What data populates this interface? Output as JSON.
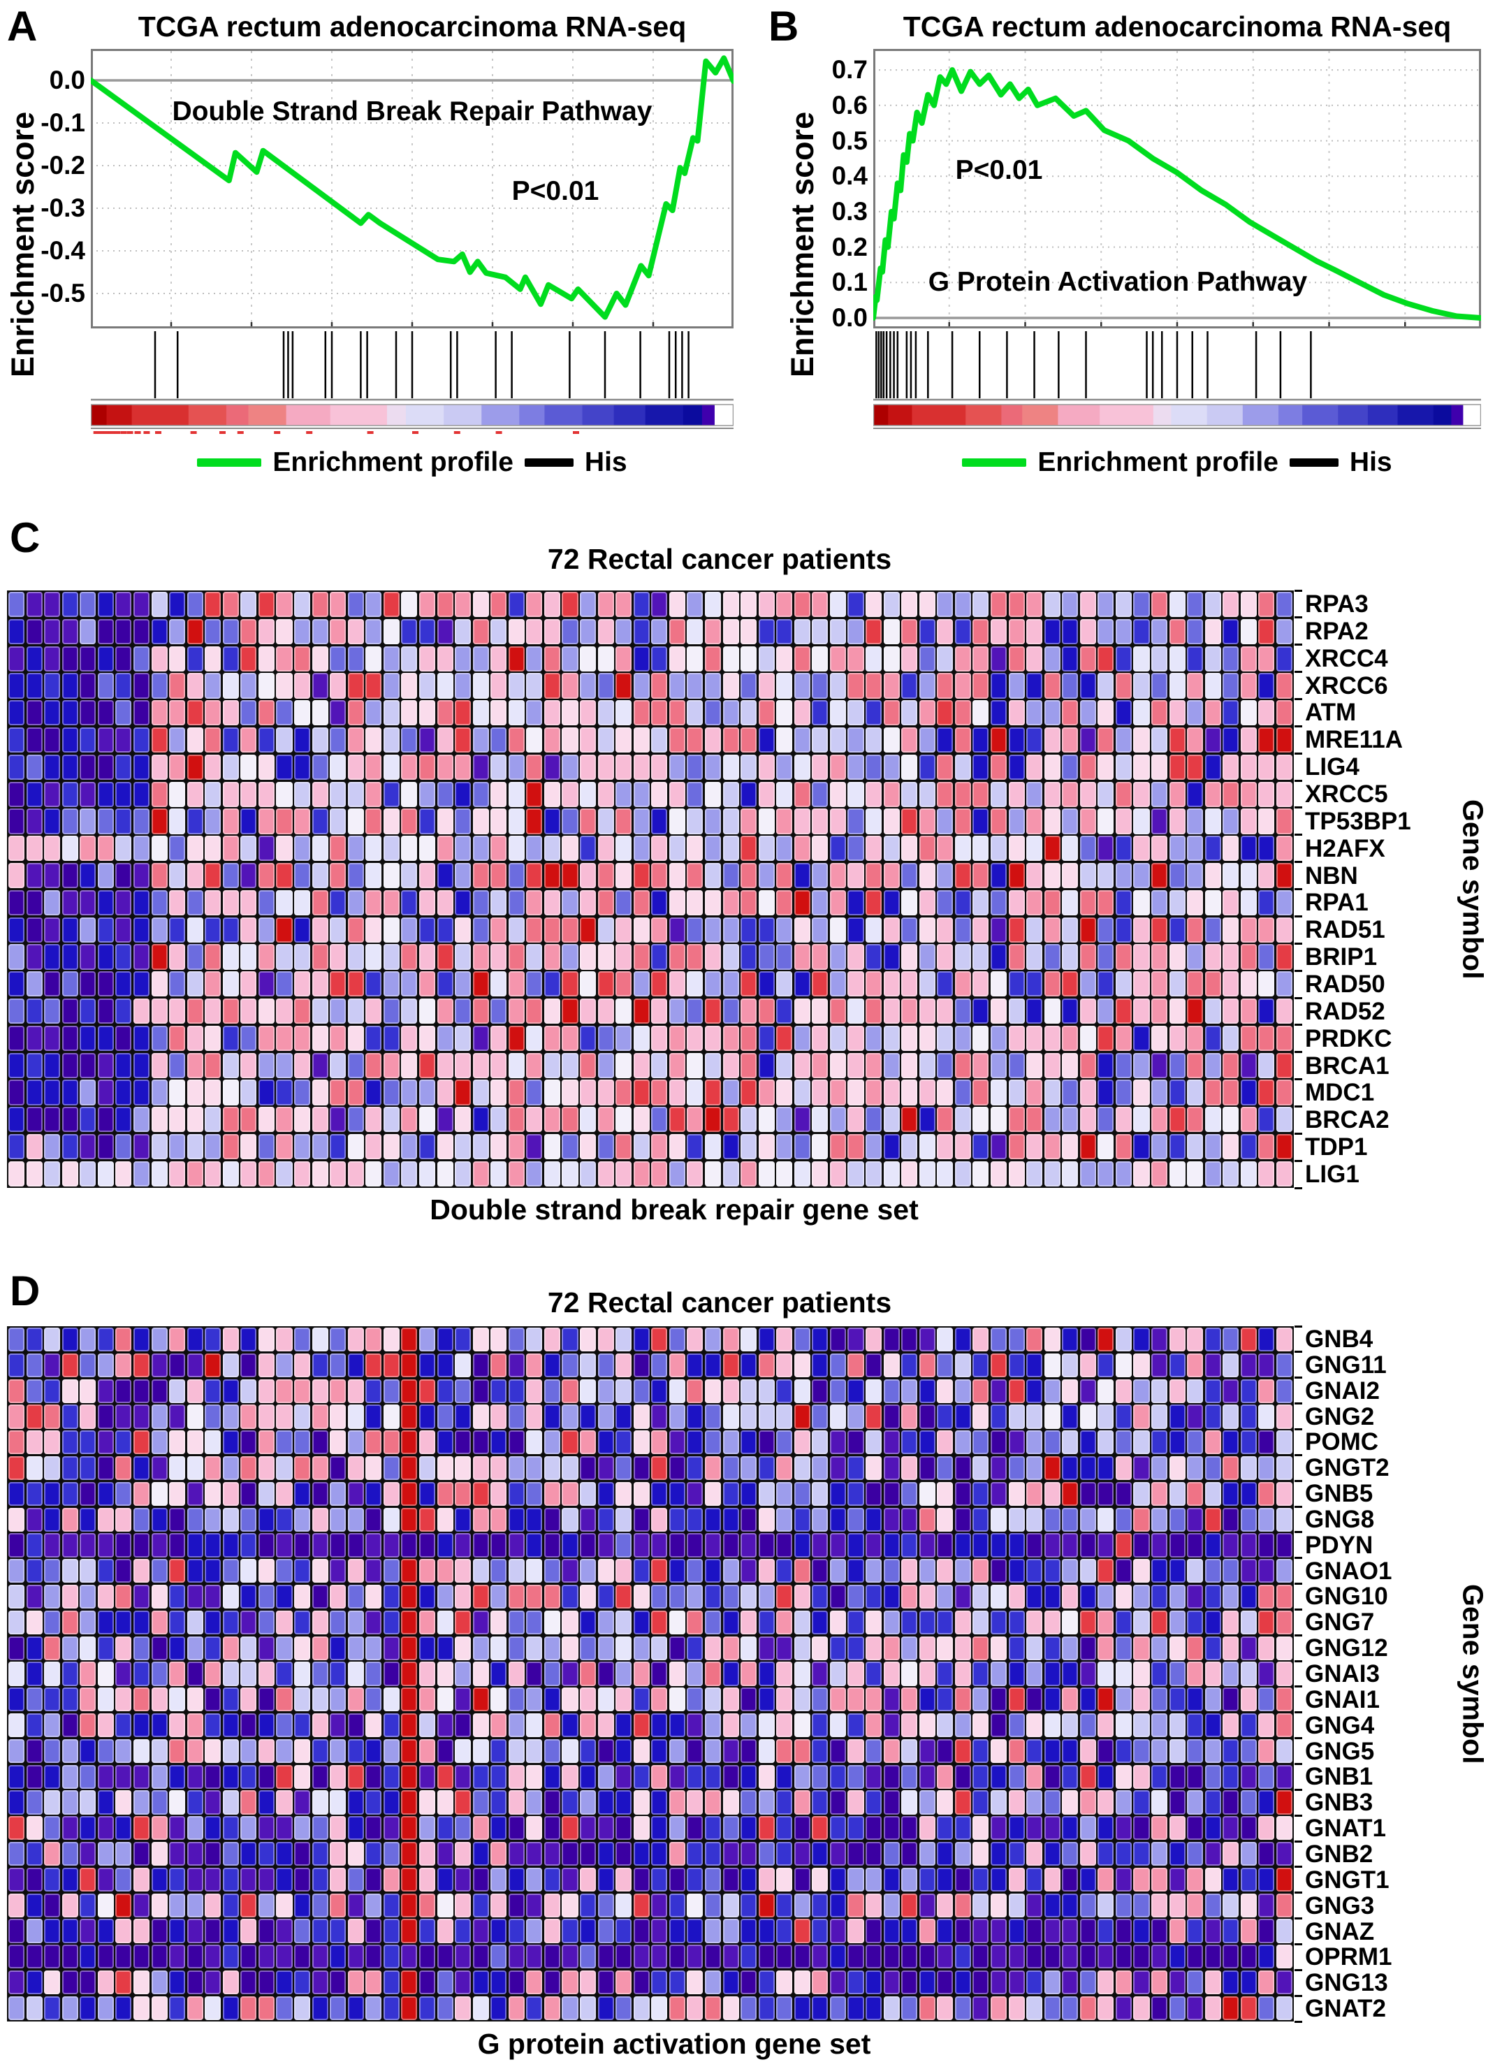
{
  "figure": {
    "panel_letters": [
      "A",
      "B",
      "C",
      "D"
    ]
  },
  "colors": {
    "P0": "#3b00a2",
    "P1": "#5214b8",
    "B0": "#1c12c4",
    "B1": "#3633d2",
    "B2": "#6c6cdf",
    "B3": "#9d9dec",
    "B4": "#cbcbf5",
    "B5": "#e6e6fb",
    "W": "#f3f0fa",
    "R5": "#fadcec",
    "R4": "#f8bcd6",
    "R3": "#f595ad",
    "R2": "#ef7386",
    "R1": "#e53c45",
    "R0": "#d11010",
    "R00": "#a80000"
  },
  "palettes": {
    "leftDark": [
      [
        "P0",
        3
      ],
      [
        "P1",
        3
      ],
      [
        "B0",
        4
      ],
      [
        "B1",
        3
      ],
      [
        "B2",
        1.2
      ],
      [
        "B3",
        0.8
      ],
      [
        "R4",
        0.25
      ]
    ],
    "leftMixed": [
      [
        "B3",
        2
      ],
      [
        "B4",
        2
      ],
      [
        "R4",
        2
      ],
      [
        "B1",
        1
      ],
      [
        "R3",
        1
      ],
      [
        "B5",
        1
      ]
    ],
    "leftLight": [
      [
        "B4",
        3
      ],
      [
        "B5",
        2
      ],
      [
        "R5",
        2
      ],
      [
        "B3",
        1
      ],
      [
        "R4",
        1
      ]
    ],
    "mixedC": [
      [
        "R4",
        3
      ],
      [
        "R3",
        2
      ],
      [
        "R2",
        2
      ],
      [
        "R5",
        2
      ],
      [
        "B3",
        2
      ],
      [
        "B4",
        2
      ],
      [
        "B2",
        1.6
      ],
      [
        "B1",
        1.4
      ],
      [
        "B5",
        1.2
      ],
      [
        "R1",
        0.8
      ],
      [
        "R0",
        0.5
      ],
      [
        "B0",
        1
      ],
      [
        "P1",
        0.4
      ],
      [
        "W",
        0.8
      ]
    ],
    "lightRow": [
      [
        "B4",
        2
      ],
      [
        "B5",
        2
      ],
      [
        "R5",
        2
      ],
      [
        "R4",
        2
      ],
      [
        "B3",
        1
      ],
      [
        "R3",
        1
      ],
      [
        "W",
        1
      ]
    ],
    "mixedD": [
      [
        "B0",
        2.6
      ],
      [
        "B1",
        2.6
      ],
      [
        "B2",
        2
      ],
      [
        "B3",
        2
      ],
      [
        "B4",
        1.8
      ],
      [
        "P0",
        1.4
      ],
      [
        "P1",
        1.4
      ],
      [
        "R4",
        2
      ],
      [
        "R3",
        1.5
      ],
      [
        "R5",
        1.5
      ],
      [
        "R2",
        1
      ],
      [
        "R1",
        0.6
      ],
      [
        "R0",
        0.3
      ],
      [
        "B5",
        0.9
      ],
      [
        "W",
        0.4
      ]
    ],
    "darkRow": [
      [
        "P0",
        6
      ],
      [
        "P1",
        4
      ],
      [
        "B0",
        1.5
      ],
      [
        "B1",
        0.8
      ],
      [
        "R1",
        0.15
      ],
      [
        "B2",
        0.2
      ]
    ],
    "semiDark": [
      [
        "P0",
        2.5
      ],
      [
        "P1",
        2
      ],
      [
        "B0",
        2.5
      ],
      [
        "B1",
        2
      ],
      [
        "B2",
        1
      ],
      [
        "B3",
        0.8
      ],
      [
        "R4",
        1
      ],
      [
        "R3",
        0.8
      ],
      [
        "R5",
        0.6
      ],
      [
        "R1",
        0.3
      ]
    ]
  },
  "chart_data": [
    {
      "id": "A",
      "type": "line",
      "title": "TCGA rectum adenocarcinoma RNA-seq",
      "ylabel": "Enrichment  score",
      "pathway_label": "Double Strand Break Repair Pathway",
      "pvalue": "P<0.01",
      "legend": [
        "Enrichment profile",
        "His"
      ],
      "yticks": [
        "0.0",
        "-0.1",
        "-0.2",
        "-0.3",
        "-0.4",
        "-0.5"
      ],
      "ylim": [
        -0.58,
        0.07
      ],
      "grid": "dotted horizontal, dashed vertical",
      "series": [
        {
          "name": "Enrichment profile",
          "color": "#00dc1e",
          "points": [
            [
              0,
              0
            ],
            [
              0.215,
              -0.235
            ],
            [
              0.225,
              -0.17
            ],
            [
              0.258,
              -0.215
            ],
            [
              0.268,
              -0.165
            ],
            [
              0.42,
              -0.335
            ],
            [
              0.432,
              -0.315
            ],
            [
              0.45,
              -0.335
            ],
            [
              0.54,
              -0.42
            ],
            [
              0.565,
              -0.425
            ],
            [
              0.578,
              -0.408
            ],
            [
              0.59,
              -0.45
            ],
            [
              0.602,
              -0.425
            ],
            [
              0.615,
              -0.452
            ],
            [
              0.645,
              -0.462
            ],
            [
              0.668,
              -0.49
            ],
            [
              0.676,
              -0.462
            ],
            [
              0.7,
              -0.525
            ],
            [
              0.712,
              -0.48
            ],
            [
              0.748,
              -0.512
            ],
            [
              0.758,
              -0.49
            ],
            [
              0.8,
              -0.555
            ],
            [
              0.818,
              -0.5
            ],
            [
              0.832,
              -0.527
            ],
            [
              0.856,
              -0.435
            ],
            [
              0.868,
              -0.458
            ],
            [
              0.895,
              -0.29
            ],
            [
              0.905,
              -0.305
            ],
            [
              0.917,
              -0.205
            ],
            [
              0.924,
              -0.218
            ],
            [
              0.937,
              -0.135
            ],
            [
              0.944,
              -0.142
            ],
            [
              0.957,
              0.045
            ],
            [
              0.972,
              0.018
            ],
            [
              0.985,
              0.052
            ],
            [
              1,
              -0.002
            ]
          ]
        }
      ],
      "hits": [
        0.1,
        0.135,
        0.3,
        0.307,
        0.314,
        0.365,
        0.375,
        0.42,
        0.43,
        0.475,
        0.5,
        0.56,
        0.57,
        0.63,
        0.655,
        0.745,
        0.8,
        0.855,
        0.9,
        0.91,
        0.92,
        0.93
      ],
      "colorbar": [
        [
          "#ad0000",
          2.5
        ],
        [
          "#c51212",
          4
        ],
        [
          "#d93030",
          9
        ],
        [
          "#e55252",
          6
        ],
        [
          "#eb6a78",
          3.5
        ],
        [
          "#ee8383",
          6
        ],
        [
          "#f5aac2",
          7
        ],
        [
          "#f8c2d8",
          9
        ],
        [
          "#ecdcf0",
          3
        ],
        [
          "#dcdcf7",
          6
        ],
        [
          "#cacaf3",
          6
        ],
        [
          "#9c9cea",
          6
        ],
        [
          "#7d7de2",
          4
        ],
        [
          "#5b5bd5",
          6
        ],
        [
          "#4444c9",
          5
        ],
        [
          "#2e2ebd",
          5
        ],
        [
          "#1717ab",
          6
        ],
        [
          "#0b0b9e",
          3
        ],
        [
          "#3f00ad",
          2
        ],
        [
          "#ffffff",
          3
        ]
      ],
      "red_marks": [
        0.004,
        0.012,
        0.02,
        0.028,
        0.036,
        0.046,
        0.056,
        0.068,
        0.082,
        0.1,
        0.155,
        0.2,
        0.228,
        0.285,
        0.335,
        0.43,
        0.5,
        0.565,
        0.63,
        0.75
      ]
    },
    {
      "id": "B",
      "type": "line",
      "title": "TCGA rectum adenocarcinoma RNA-seq",
      "ylabel": "Enrichment score",
      "pathway_label": "G Protein Activation Pathway",
      "pvalue": "P<0.01",
      "legend": [
        "Enrichment profile",
        "His"
      ],
      "yticks": [
        "0.7",
        "0.6",
        "0.5",
        "0.4",
        "0.3",
        "0.2",
        "0.1",
        "0.0"
      ],
      "ylim": [
        0.0,
        0.75
      ],
      "grid": "dotted horizontal, dashed vertical",
      "series": [
        {
          "name": "Enrichment profile",
          "color": "#00dc1e",
          "points": [
            [
              0,
              0
            ],
            [
              0.004,
              0.06
            ],
            [
              0.006,
              0.05
            ],
            [
              0.012,
              0.14
            ],
            [
              0.015,
              0.13
            ],
            [
              0.02,
              0.22
            ],
            [
              0.024,
              0.2
            ],
            [
              0.03,
              0.3
            ],
            [
              0.034,
              0.28
            ],
            [
              0.04,
              0.38
            ],
            [
              0.045,
              0.36
            ],
            [
              0.05,
              0.46
            ],
            [
              0.055,
              0.44
            ],
            [
              0.06,
              0.52
            ],
            [
              0.065,
              0.5
            ],
            [
              0.072,
              0.58
            ],
            [
              0.08,
              0.55
            ],
            [
              0.09,
              0.63
            ],
            [
              0.1,
              0.6
            ],
            [
              0.11,
              0.68
            ],
            [
              0.12,
              0.66
            ],
            [
              0.13,
              0.7
            ],
            [
              0.145,
              0.64
            ],
            [
              0.16,
              0.695
            ],
            [
              0.175,
              0.66
            ],
            [
              0.19,
              0.685
            ],
            [
              0.21,
              0.63
            ],
            [
              0.225,
              0.66
            ],
            [
              0.24,
              0.62
            ],
            [
              0.255,
              0.645
            ],
            [
              0.27,
              0.6
            ],
            [
              0.3,
              0.62
            ],
            [
              0.33,
              0.57
            ],
            [
              0.35,
              0.585
            ],
            [
              0.38,
              0.53
            ],
            [
              0.42,
              0.5
            ],
            [
              0.46,
              0.45
            ],
            [
              0.5,
              0.41
            ],
            [
              0.54,
              0.36
            ],
            [
              0.58,
              0.32
            ],
            [
              0.62,
              0.27
            ],
            [
              0.66,
              0.23
            ],
            [
              0.7,
              0.19
            ],
            [
              0.73,
              0.16
            ],
            [
              0.76,
              0.135
            ],
            [
              0.8,
              0.1
            ],
            [
              0.84,
              0.065
            ],
            [
              0.88,
              0.04
            ],
            [
              0.92,
              0.02
            ],
            [
              0.96,
              0.005
            ],
            [
              1,
              0
            ]
          ]
        }
      ],
      "hits": [
        0.005,
        0.009,
        0.013,
        0.017,
        0.022,
        0.028,
        0.034,
        0.04,
        0.055,
        0.062,
        0.07,
        0.09,
        0.13,
        0.175,
        0.22,
        0.265,
        0.305,
        0.35,
        0.45,
        0.46,
        0.475,
        0.5,
        0.525,
        0.55,
        0.63,
        0.67,
        0.72
      ],
      "colorbar": [
        [
          "#ad0000",
          2.5
        ],
        [
          "#c51212",
          4
        ],
        [
          "#d93030",
          9
        ],
        [
          "#e55252",
          6
        ],
        [
          "#eb6a78",
          3.5
        ],
        [
          "#ee8383",
          6
        ],
        [
          "#f5aac2",
          7
        ],
        [
          "#f8c2d8",
          9
        ],
        [
          "#ecdcf0",
          3
        ],
        [
          "#dcdcf7",
          6
        ],
        [
          "#cacaf3",
          6
        ],
        [
          "#9c9cea",
          6
        ],
        [
          "#7d7de2",
          4
        ],
        [
          "#5b5bd5",
          6
        ],
        [
          "#4444c9",
          5
        ],
        [
          "#2e2ebd",
          5
        ],
        [
          "#1717ab",
          6
        ],
        [
          "#0b0b9e",
          3
        ],
        [
          "#3f00ad",
          2
        ],
        [
          "#ffffff",
          3
        ]
      ],
      "red_marks": []
    },
    {
      "id": "C",
      "type": "heatmap",
      "title": "72 Rectal cancer patients",
      "xlabel": "Double strand break repair gene set",
      "ylabel": "Gene symbol",
      "n_patients": 72,
      "genes": [
        {
          "name": "RPA3",
          "edge": "B2"
        },
        {
          "name": "RPA2",
          "edge": "B3"
        },
        {
          "name": "XRCC4",
          "edge": "B1"
        },
        {
          "name": "XRCC6",
          "edge": "R2"
        },
        {
          "name": "ATM",
          "edge": "R2"
        },
        {
          "name": "MRE11A",
          "edge": "R0"
        },
        {
          "name": "LIG4",
          "edge": "R4"
        },
        {
          "name": "XRCC5",
          "edge": "R4"
        },
        {
          "name": "TP53BP1",
          "edge": "R2"
        },
        {
          "name": "H2AFX",
          "edge": "R3"
        },
        {
          "name": "NBN",
          "edge": "R0"
        },
        {
          "name": "RPA1",
          "edge": "B3"
        },
        {
          "name": "RAD51",
          "edge": "R4"
        },
        {
          "name": "BRIP1",
          "edge": "R1"
        },
        {
          "name": "RAD50",
          "edge": "B3"
        },
        {
          "name": "RAD52",
          "edge": "R4"
        },
        {
          "name": "PRDKC",
          "edge": "R2"
        },
        {
          "name": "BRCA1",
          "edge": "R1"
        },
        {
          "name": "MDC1",
          "edge": "R2"
        },
        {
          "name": "BRCA2",
          "edge": "B4"
        },
        {
          "name": "TDP1",
          "edge": "R0"
        },
        {
          "name": "LIG1",
          "edge": "R4"
        }
      ],
      "generator": {
        "seed": 11,
        "left_cols": 8,
        "left_palette": "leftDark",
        "left_palette_overrides": {
          "9": "leftMixed",
          "21": "leftLight"
        },
        "main_palette": "mixedC",
        "row_palette_overrides": {
          "21": "lightRow"
        }
      }
    },
    {
      "id": "D",
      "type": "heatmap",
      "title": "72 Rectal cancer patients",
      "xlabel": "G protein activation gene set",
      "ylabel": "Gene symbol",
      "n_patients": 72,
      "genes": [
        {
          "name": "GNB4",
          "edge": "R4"
        },
        {
          "name": "GNG11",
          "edge": "B2"
        },
        {
          "name": "GNAI2",
          "edge": "B2"
        },
        {
          "name": "GNG2",
          "edge": "R4"
        },
        {
          "name": "POMC",
          "edge": "B4"
        },
        {
          "name": "GNGT2",
          "edge": "B4"
        },
        {
          "name": "GNB5",
          "edge": "R4"
        },
        {
          "name": "GNG8",
          "edge": "B4"
        },
        {
          "name": "PDYN",
          "edge": "P0"
        },
        {
          "name": "GNAO1",
          "edge": "B3"
        },
        {
          "name": "GNG10",
          "edge": "R2"
        },
        {
          "name": "GNG7",
          "edge": "R2"
        },
        {
          "name": "GNG12",
          "edge": "R5"
        },
        {
          "name": "GNAI3",
          "edge": "R4"
        },
        {
          "name": "GNAI1",
          "edge": "R2"
        },
        {
          "name": "GNG4",
          "edge": "R2"
        },
        {
          "name": "GNG5",
          "edge": "B4"
        },
        {
          "name": "GNB1",
          "edge": "P1"
        },
        {
          "name": "GNB3",
          "edge": "R0"
        },
        {
          "name": "GNAT1",
          "edge": "R5"
        },
        {
          "name": "GNB2",
          "edge": "P1"
        },
        {
          "name": "GNGT1",
          "edge": "R0"
        },
        {
          "name": "GNG3",
          "edge": "R2"
        },
        {
          "name": "GNAZ",
          "edge": "B4"
        },
        {
          "name": "OPRM1",
          "edge": "R5"
        },
        {
          "name": "GNG13",
          "edge": "P1"
        },
        {
          "name": "GNAT2",
          "edge": "B4"
        }
      ],
      "generator": {
        "seed": 29,
        "left_cols": 0,
        "main_palette": "mixedD",
        "row_palette_overrides": {
          "8": "darkRow",
          "24": "darkRow",
          "17": "semiDark",
          "19": "semiDark",
          "20": "semiDark",
          "21": "semiDark",
          "23": "semiDark",
          "25": "semiDark"
        },
        "red_column": 22,
        "red_column_skip_rows": [
          8,
          24
        ]
      }
    }
  ]
}
